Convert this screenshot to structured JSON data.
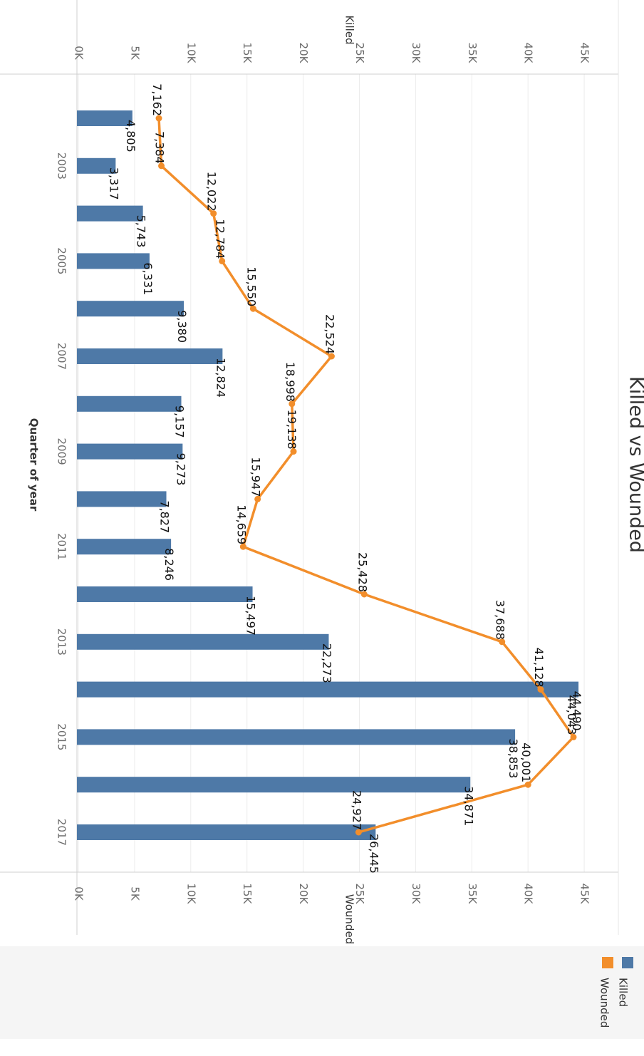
{
  "chart_data": {
    "type": "bar",
    "title": "Killed vs Wounded",
    "xlabel": "Quarter of year",
    "category_ticks": [
      "2003",
      "2005",
      "2007",
      "2009",
      "2011",
      "2013",
      "2015",
      "2017"
    ],
    "series": [
      {
        "name": "Killed",
        "type": "bar",
        "color": "#4e79a7",
        "axis_label": "Killed",
        "values": [
          4805,
          3317,
          5743,
          6331,
          9380,
          12824,
          9157,
          9273,
          7827,
          8246,
          15497,
          22273,
          44490,
          38853,
          34871,
          26445
        ]
      },
      {
        "name": "Wounded",
        "type": "line",
        "color": "#f28e2b",
        "axis_label": "Wounded",
        "values": [
          7162,
          7384,
          12022,
          12784,
          15550,
          22524,
          18998,
          19138,
          15947,
          14659,
          25428,
          37688,
          41128,
          44043,
          40001,
          24927
        ]
      }
    ],
    "value_axis_ticks": [
      "0K",
      "5K",
      "10K",
      "15K",
      "20K",
      "25K",
      "30K",
      "35K",
      "40K",
      "45K"
    ],
    "ylim": [
      0,
      45000
    ],
    "grid": true,
    "legend_position": "bottom-right"
  },
  "labels": {
    "killed": [
      "4,805",
      "3,317",
      "5,743",
      "6,331",
      "9,380",
      "12,824",
      "9,157",
      "9,273",
      "7,827",
      "8,246",
      "15,497",
      "22,273",
      "44,490",
      "38,853",
      "34,871",
      "26,445"
    ],
    "wounded": [
      "7,162",
      "7,384",
      "12,022",
      "12,784",
      "15,550",
      "22,524",
      "18,998",
      "19,138",
      "15,947",
      "14,659",
      "25,428",
      "37,688",
      "41,128",
      "44,043",
      "40,001",
      "24,927"
    ]
  }
}
